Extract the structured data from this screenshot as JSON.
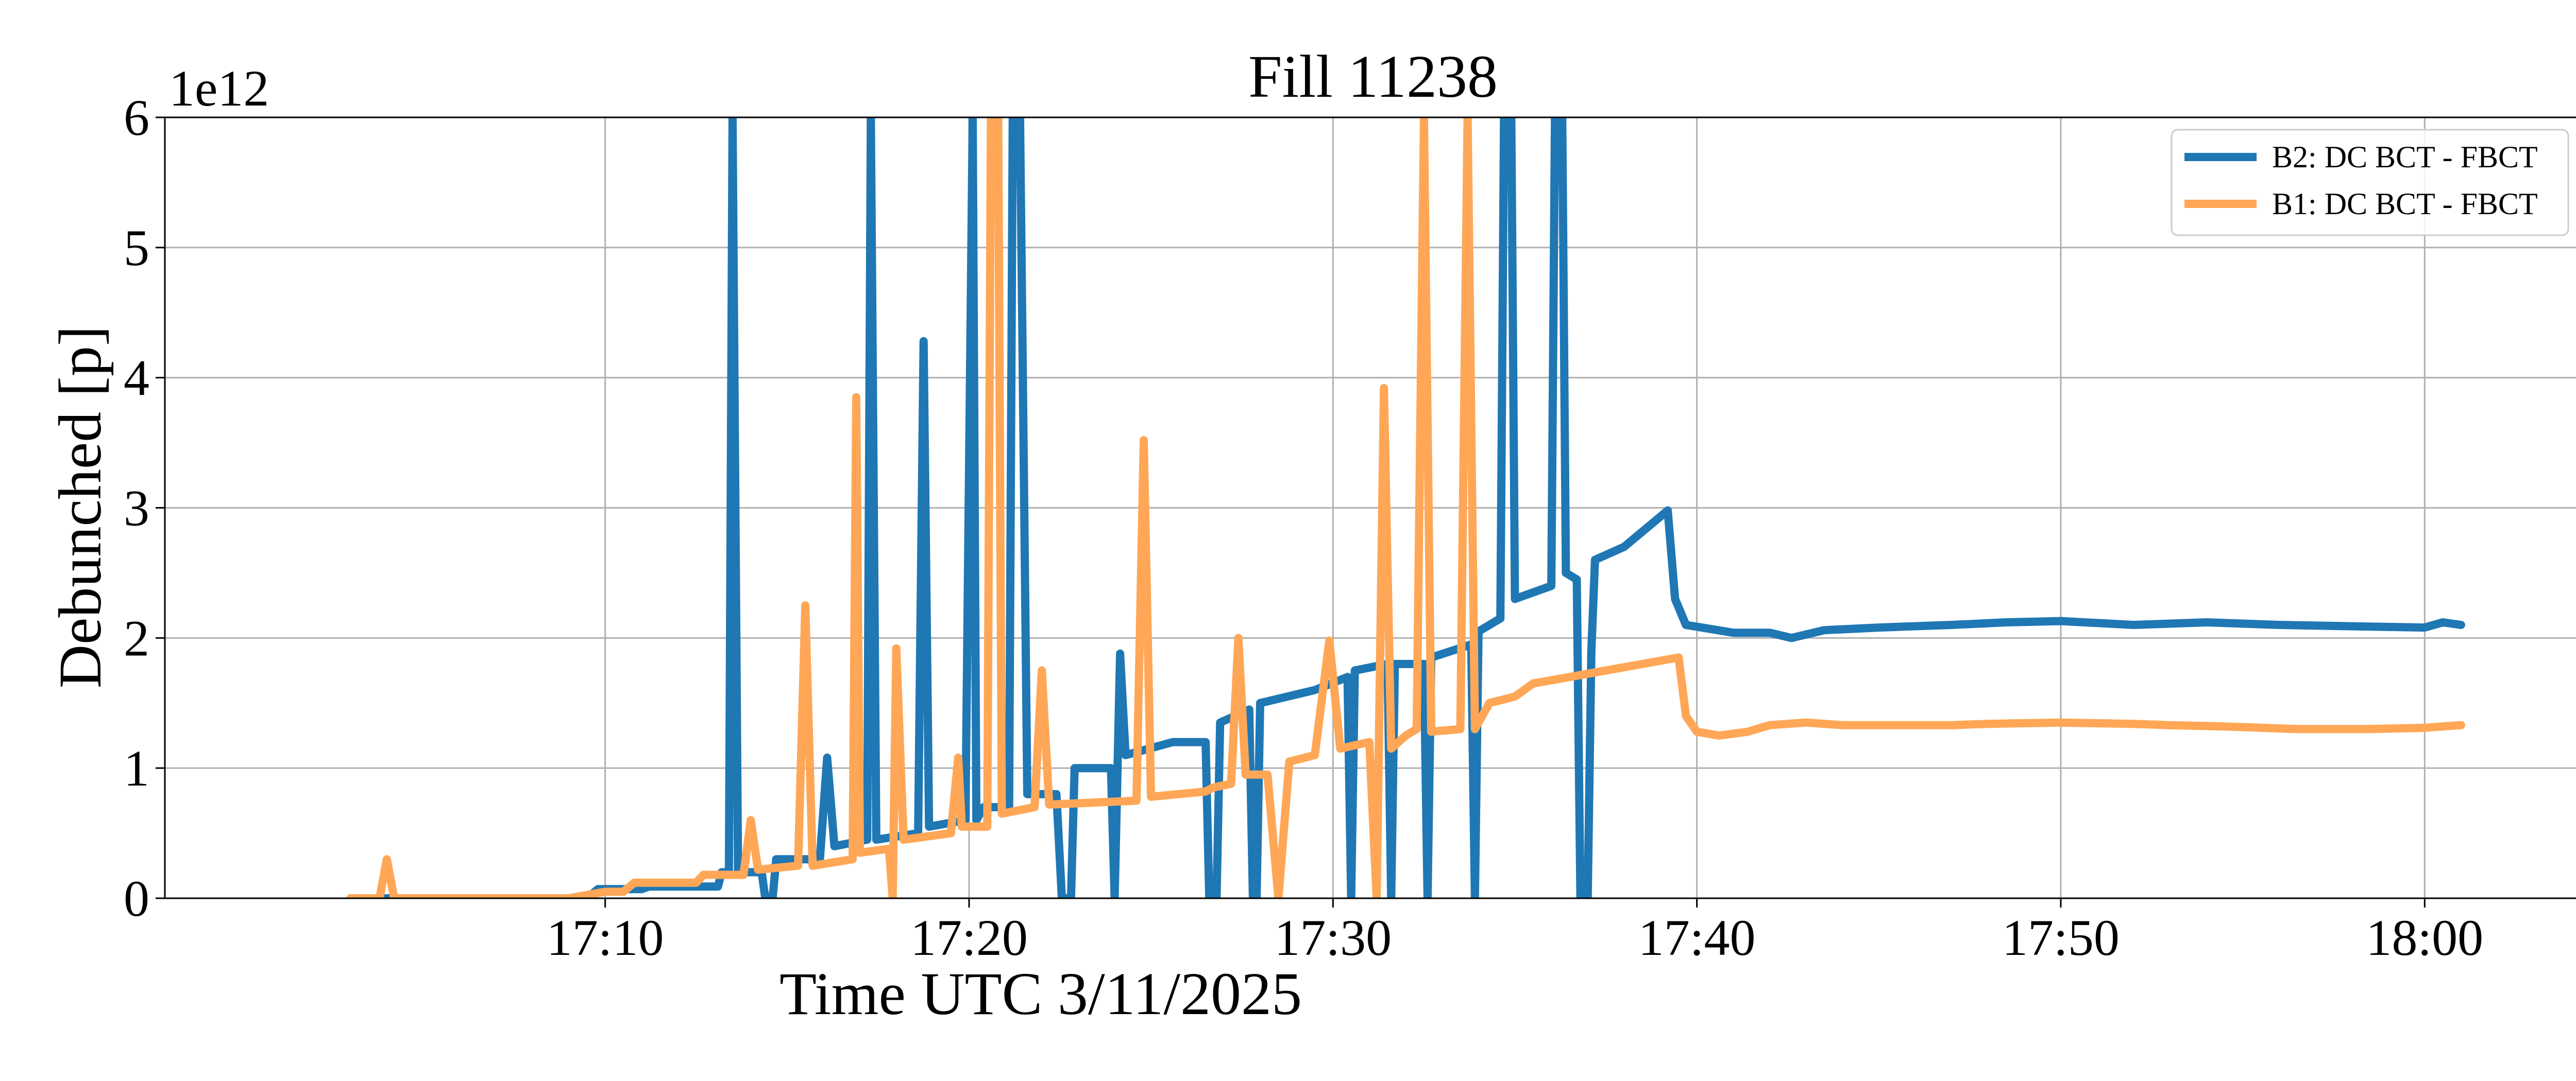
{
  "chart_data": {
    "type": "line",
    "title": "Fill 11238",
    "xlabel": "Time UTC 3/11/2025",
    "ylabel": "Debunched [p]",
    "y_offset_text": "1e12",
    "y_scale_factor": 1000000000000.0,
    "x_unit": "minutes after 17:00 UTC",
    "xlim": [
      -2.1,
      64.3
    ],
    "ylim": [
      0,
      6
    ],
    "x_ticks": [
      10,
      20,
      30,
      40,
      50,
      60
    ],
    "x_tick_labels": [
      "17:10",
      "17:20",
      "17:30",
      "17:40",
      "17:50",
      "18:00"
    ],
    "y_ticks": [
      0,
      1,
      2,
      3,
      4,
      5,
      6
    ],
    "y_tick_labels": [
      "0",
      "1",
      "2",
      "3",
      "4",
      "5",
      "6"
    ],
    "grid": true,
    "legend_position": "upper right",
    "series": [
      {
        "name": "B2: DC BCT - FBCT",
        "color": "#1f77b4",
        "points": [
          [
            3.0,
            0.0
          ],
          [
            9.5,
            0.0
          ],
          [
            9.8,
            0.07
          ],
          [
            11.0,
            0.07
          ],
          [
            11.2,
            0.09
          ],
          [
            13.1,
            0.09
          ],
          [
            13.2,
            0.2
          ],
          [
            13.4,
            0.2
          ],
          [
            13.5,
            6.0
          ],
          [
            13.65,
            0.2
          ],
          [
            14.0,
            0.2
          ],
          [
            14.3,
            0.2
          ],
          [
            14.4,
            0.0
          ],
          [
            14.6,
            0.0
          ],
          [
            14.7,
            0.3
          ],
          [
            15.9,
            0.3
          ],
          [
            16.1,
            1.08
          ],
          [
            16.3,
            0.4
          ],
          [
            17.2,
            0.45
          ],
          [
            17.3,
            6.0
          ],
          [
            17.45,
            0.45
          ],
          [
            18.6,
            0.5
          ],
          [
            18.75,
            4.28
          ],
          [
            18.9,
            0.55
          ],
          [
            19.9,
            0.6
          ],
          [
            20.1,
            6.0
          ],
          [
            20.2,
            0.6
          ],
          [
            20.4,
            0.7
          ],
          [
            21.1,
            0.7
          ],
          [
            21.2,
            6.0
          ],
          [
            21.4,
            6.0
          ],
          [
            21.6,
            0.8
          ],
          [
            22.4,
            0.8
          ],
          [
            22.55,
            0.0
          ],
          [
            22.8,
            0.0
          ],
          [
            22.9,
            1.0
          ],
          [
            23.9,
            1.0
          ],
          [
            24.0,
            0.0
          ],
          [
            24.15,
            1.88
          ],
          [
            24.3,
            1.1
          ],
          [
            25.6,
            1.2
          ],
          [
            26.5,
            1.2
          ],
          [
            26.6,
            0.0
          ],
          [
            26.8,
            0.0
          ],
          [
            26.9,
            1.35
          ],
          [
            27.7,
            1.45
          ],
          [
            27.8,
            0.0
          ],
          [
            27.9,
            0.0
          ],
          [
            28.0,
            1.5
          ],
          [
            29.5,
            1.6
          ],
          [
            30.4,
            1.7
          ],
          [
            30.5,
            0.0
          ],
          [
            30.6,
            1.75
          ],
          [
            31.5,
            1.8
          ],
          [
            31.6,
            0.0
          ],
          [
            31.7,
            1.8
          ],
          [
            32.5,
            1.8
          ],
          [
            32.6,
            0.0
          ],
          [
            32.7,
            1.85
          ],
          [
            33.8,
            1.95
          ],
          [
            33.9,
            0.0
          ],
          [
            34.0,
            2.05
          ],
          [
            34.6,
            2.15
          ],
          [
            34.7,
            6.0
          ],
          [
            34.9,
            6.0
          ],
          [
            35.0,
            2.3
          ],
          [
            35.5,
            2.35
          ],
          [
            36.0,
            2.4
          ],
          [
            36.1,
            6.0
          ],
          [
            36.3,
            6.0
          ],
          [
            36.4,
            2.5
          ],
          [
            36.7,
            2.45
          ],
          [
            36.8,
            0.0
          ],
          [
            37.0,
            0.0
          ],
          [
            37.1,
            1.9
          ],
          [
            37.2,
            2.6
          ],
          [
            38.0,
            2.7
          ],
          [
            39.2,
            2.98
          ],
          [
            39.4,
            2.3
          ],
          [
            39.7,
            2.1
          ],
          [
            41.0,
            2.04
          ],
          [
            42.0,
            2.04
          ],
          [
            42.6,
            2.0
          ],
          [
            43.5,
            2.06
          ],
          [
            45.0,
            2.08
          ],
          [
            47.0,
            2.1
          ],
          [
            48.5,
            2.12
          ],
          [
            50.0,
            2.13
          ],
          [
            52.0,
            2.1
          ],
          [
            54.0,
            2.12
          ],
          [
            56.0,
            2.1
          ],
          [
            58.0,
            2.09
          ],
          [
            60.0,
            2.08
          ],
          [
            60.5,
            2.12
          ],
          [
            61.0,
            2.1
          ]
        ]
      },
      {
        "name": "B1: DC BCT - FBCT",
        "color": "#ffa756",
        "points": [
          [
            3.0,
            0.0
          ],
          [
            3.8,
            0.0
          ],
          [
            4.0,
            0.3
          ],
          [
            4.2,
            0.0
          ],
          [
            9.0,
            0.0
          ],
          [
            10.0,
            0.05
          ],
          [
            10.5,
            0.05
          ],
          [
            10.8,
            0.12
          ],
          [
            12.5,
            0.12
          ],
          [
            12.7,
            0.18
          ],
          [
            13.8,
            0.18
          ],
          [
            14.0,
            0.6
          ],
          [
            14.2,
            0.22
          ],
          [
            15.3,
            0.25
          ],
          [
            15.5,
            2.25
          ],
          [
            15.7,
            0.25
          ],
          [
            16.8,
            0.3
          ],
          [
            16.9,
            3.85
          ],
          [
            17.0,
            0.35
          ],
          [
            17.8,
            0.38
          ],
          [
            17.9,
            0.0
          ],
          [
            18.0,
            1.92
          ],
          [
            18.2,
            0.45
          ],
          [
            19.5,
            0.5
          ],
          [
            19.7,
            1.08
          ],
          [
            19.8,
            0.55
          ],
          [
            20.5,
            0.55
          ],
          [
            20.6,
            6.0
          ],
          [
            20.8,
            6.0
          ],
          [
            20.9,
            0.65
          ],
          [
            21.8,
            0.7
          ],
          [
            22.0,
            1.75
          ],
          [
            22.2,
            0.72
          ],
          [
            24.6,
            0.75
          ],
          [
            24.8,
            3.52
          ],
          [
            25.0,
            0.78
          ],
          [
            26.5,
            0.82
          ],
          [
            26.7,
            0.85
          ],
          [
            27.2,
            0.88
          ],
          [
            27.4,
            2.0
          ],
          [
            27.6,
            0.95
          ],
          [
            28.2,
            0.95
          ],
          [
            28.5,
            0.0
          ],
          [
            28.8,
            1.05
          ],
          [
            29.5,
            1.1
          ],
          [
            29.9,
            1.98
          ],
          [
            30.2,
            1.15
          ],
          [
            31.0,
            1.2
          ],
          [
            31.2,
            0.0
          ],
          [
            31.4,
            3.92
          ],
          [
            31.6,
            1.15
          ],
          [
            32.0,
            1.25
          ],
          [
            32.3,
            1.3
          ],
          [
            32.5,
            6.0
          ],
          [
            32.7,
            1.28
          ],
          [
            33.5,
            1.3
          ],
          [
            33.7,
            6.0
          ],
          [
            33.9,
            1.3
          ],
          [
            34.3,
            1.5
          ],
          [
            35.0,
            1.55
          ],
          [
            35.5,
            1.65
          ],
          [
            36.5,
            1.7
          ],
          [
            37.5,
            1.75
          ],
          [
            38.5,
            1.8
          ],
          [
            39.5,
            1.85
          ],
          [
            39.7,
            1.4
          ],
          [
            40.0,
            1.28
          ],
          [
            40.6,
            1.25
          ],
          [
            41.4,
            1.28
          ],
          [
            42.0,
            1.33
          ],
          [
            43.0,
            1.35
          ],
          [
            44.0,
            1.33
          ],
          [
            45.0,
            1.33
          ],
          [
            47.0,
            1.33
          ],
          [
            48.0,
            1.34
          ],
          [
            50.0,
            1.35
          ],
          [
            52.0,
            1.34
          ],
          [
            53.0,
            1.33
          ],
          [
            54.5,
            1.32
          ],
          [
            56.5,
            1.3
          ],
          [
            58.5,
            1.3
          ],
          [
            60.0,
            1.31
          ],
          [
            61.0,
            1.33
          ]
        ]
      }
    ]
  }
}
